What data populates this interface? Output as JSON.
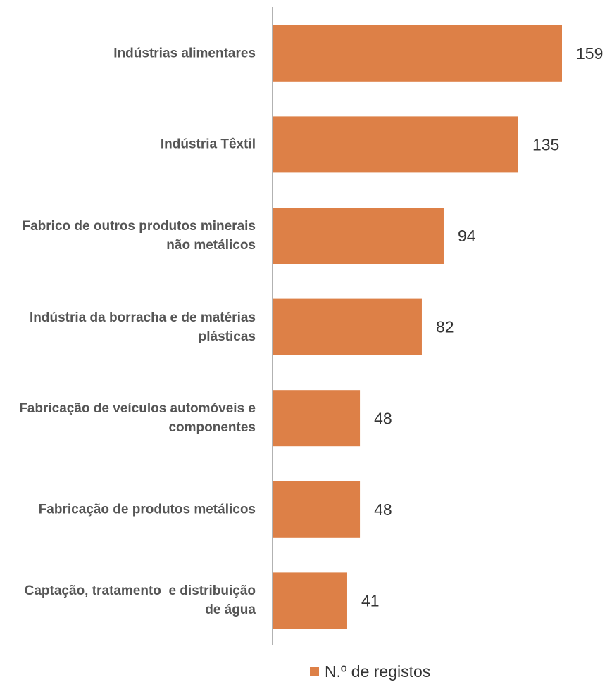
{
  "chart_data": {
    "type": "bar",
    "orientation": "horizontal",
    "categories": [
      "Indústrias alimentares",
      "Indústria Têxtil",
      "Fabrico de outros produtos minerais não metálicos",
      "Indústria da borracha e de matérias plásticas",
      "Fabricação de veículos automóveis e componentes",
      "Fabricação de produtos metálicos",
      "Captação, tratamento  e distribuição de água"
    ],
    "series": [
      {
        "name": "N.º de registos",
        "color": "#dd8047",
        "values": [
          159,
          135,
          94,
          82,
          48,
          48,
          41
        ]
      }
    ]
  }
}
